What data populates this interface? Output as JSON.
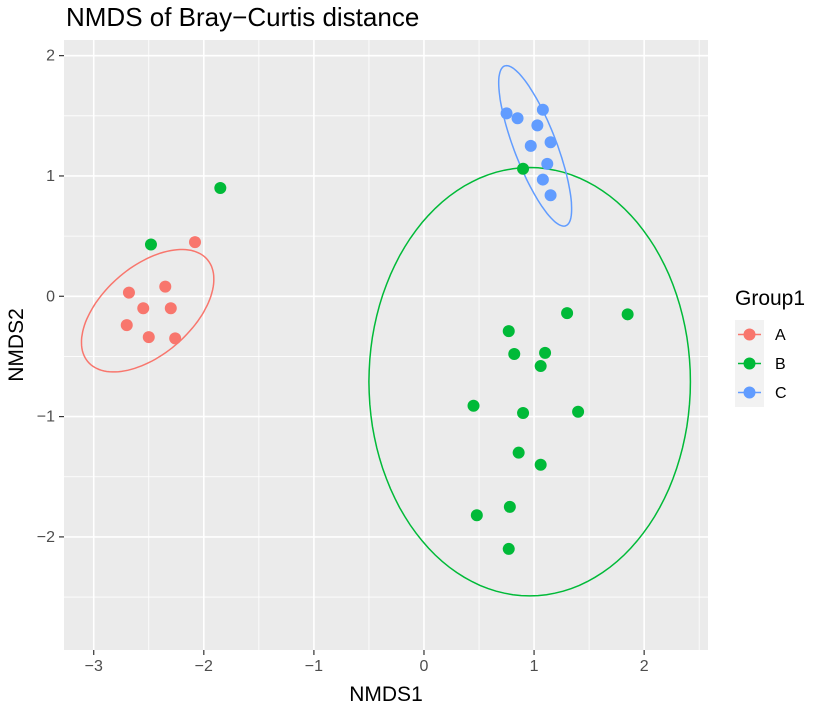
{
  "chart_data": {
    "type": "scatter",
    "title": "NMDS of Bray−Curtis distance",
    "xlabel": "NMDS1",
    "ylabel": "NMDS2",
    "xlim": [
      -3.27,
      2.58
    ],
    "ylim": [
      -2.94,
      2.13
    ],
    "x_ticks": [
      -3,
      -2,
      -1,
      0,
      1,
      2
    ],
    "x_tick_labels": [
      "−3",
      "−2",
      "−1",
      "0",
      "1",
      "2"
    ],
    "y_ticks": [
      -2,
      -1,
      0,
      1,
      2
    ],
    "y_tick_labels": [
      "−2",
      "−1",
      "0",
      "1",
      "2"
    ],
    "grid": true,
    "legend": {
      "title": "Group1",
      "placement": "right"
    },
    "series": [
      {
        "name": "A",
        "color": "#F8766D",
        "points": [
          [
            -2.08,
            0.45
          ],
          [
            -2.35,
            0.08
          ],
          [
            -2.68,
            0.03
          ],
          [
            -2.55,
            -0.1
          ],
          [
            -2.3,
            -0.1
          ],
          [
            -2.7,
            -0.24
          ],
          [
            -2.5,
            -0.34
          ],
          [
            -2.26,
            -0.35
          ]
        ],
        "ellipse": {
          "cx": -2.51,
          "cy": -0.12,
          "rx": 0.69,
          "ry": 0.38,
          "angle_deg": 36
        }
      },
      {
        "name": "B",
        "color": "#00BA38",
        "points": [
          [
            -1.85,
            0.9
          ],
          [
            -2.48,
            0.43
          ],
          [
            0.9,
            1.06
          ],
          [
            1.3,
            -0.14
          ],
          [
            1.85,
            -0.15
          ],
          [
            0.77,
            -0.29
          ],
          [
            0.82,
            -0.48
          ],
          [
            1.1,
            -0.47
          ],
          [
            1.06,
            -0.58
          ],
          [
            0.45,
            -0.91
          ],
          [
            0.9,
            -0.97
          ],
          [
            1.4,
            -0.96
          ],
          [
            0.86,
            -1.3
          ],
          [
            1.06,
            -1.4
          ],
          [
            0.48,
            -1.82
          ],
          [
            0.78,
            -1.75
          ],
          [
            0.77,
            -2.1
          ]
        ],
        "ellipse": {
          "cx": 0.96,
          "cy": -0.71,
          "rx": 1.46,
          "ry": 1.78,
          "angle_deg": 0
        }
      },
      {
        "name": "C",
        "color": "#619CFF",
        "points": [
          [
            0.75,
            1.52
          ],
          [
            0.85,
            1.48
          ],
          [
            1.08,
            1.55
          ],
          [
            1.03,
            1.42
          ],
          [
            0.97,
            1.25
          ],
          [
            1.15,
            1.28
          ],
          [
            1.12,
            1.1
          ],
          [
            1.08,
            0.97
          ],
          [
            1.15,
            0.84
          ]
        ],
        "ellipse": {
          "cx": 1.01,
          "cy": 1.25,
          "rx": 0.72,
          "ry": 0.19,
          "angle_deg": -67
        }
      }
    ]
  }
}
